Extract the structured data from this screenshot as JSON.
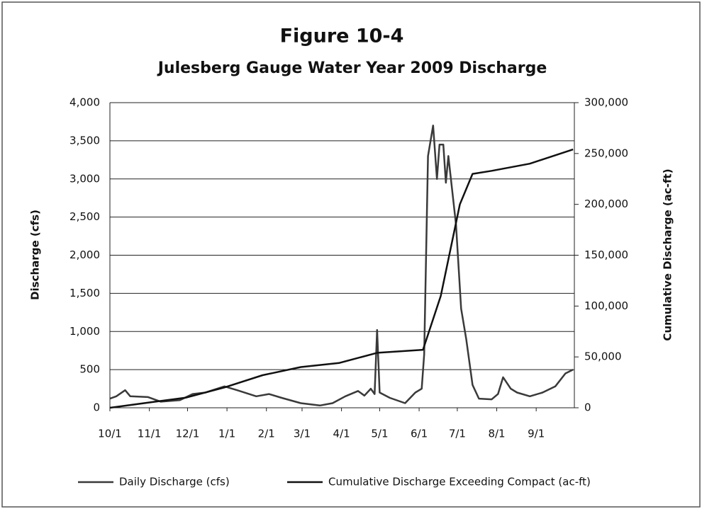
{
  "chart_data": {
    "type": "line",
    "title": "Figure 10-4",
    "subtitle": "Julesberg Gauge Water Year 2009 Discharge",
    "ylabel": "Discharge (cfs)",
    "y2label": "Cumulative Discharge (ac-ft)",
    "xlim": [
      0,
      365
    ],
    "xticks": [
      {
        "value": 0,
        "label": "10/1"
      },
      {
        "value": 31,
        "label": "11/1"
      },
      {
        "value": 61,
        "label": "12/1"
      },
      {
        "value": 92,
        "label": "1/1"
      },
      {
        "value": 123,
        "label": "2/1"
      },
      {
        "value": 151,
        "label": "3/1"
      },
      {
        "value": 182,
        "label": "4/1"
      },
      {
        "value": 212,
        "label": "5/1"
      },
      {
        "value": 243,
        "label": "6/1"
      },
      {
        "value": 273,
        "label": "7/1"
      },
      {
        "value": 304,
        "label": "8/1"
      },
      {
        "value": 335,
        "label": "9/1"
      }
    ],
    "ylim": [
      0,
      4000
    ],
    "yticks": [
      0,
      500,
      {
        "value": 1000,
        "label": "1,000"
      },
      {
        "value": 1500,
        "label": "1,500"
      },
      {
        "value": 2000,
        "label": "2,000"
      },
      {
        "value": 2500,
        "label": "2,500"
      },
      {
        "value": 3000,
        "label": "3,000"
      },
      {
        "value": 3500,
        "label": "3,500"
      },
      {
        "value": 4000,
        "label": "4,000"
      }
    ],
    "y2lim": [
      0,
      300000
    ],
    "y2ticks": [
      0,
      {
        "value": 50000,
        "label": "50,000"
      },
      {
        "value": 100000,
        "label": "100,000"
      },
      {
        "value": 150000,
        "label": "150,000"
      },
      {
        "value": 200000,
        "label": "200,000"
      },
      {
        "value": 250000,
        "label": "250,000"
      },
      {
        "value": 300000,
        "label": "300,000"
      }
    ],
    "grid": true,
    "legend": "bottom",
    "series": [
      {
        "name": "Daily Discharge (cfs)",
        "color": "#3a3a3a",
        "x": [
          0,
          5,
          12,
          16,
          30,
          40,
          55,
          65,
          75,
          90,
          100,
          115,
          125,
          135,
          150,
          165,
          175,
          185,
          195,
          200,
          205,
          208,
          210,
          212,
          220,
          232,
          240,
          245,
          247,
          250,
          254,
          257,
          259,
          262,
          264,
          266,
          268,
          272,
          276,
          280,
          285,
          290,
          300,
          305,
          309,
          315,
          320,
          330,
          340,
          350,
          358,
          364
        ],
        "values": [
          120,
          150,
          230,
          150,
          140,
          80,
          100,
          180,
          200,
          280,
          230,
          150,
          180,
          130,
          60,
          30,
          60,
          150,
          220,
          160,
          250,
          180,
          1020,
          200,
          130,
          60,
          200,
          250,
          700,
          3300,
          3700,
          3000,
          3450,
          3450,
          2950,
          3300,
          3000,
          2400,
          1300,
          900,
          300,
          120,
          110,
          180,
          400,
          250,
          200,
          150,
          200,
          280,
          450,
          500
        ]
      },
      {
        "name": "Cumulative Discharge Exceeding Compact (ac-ft)",
        "color": "#111111",
        "axis": "y2",
        "x": [
          0,
          30,
          60,
          90,
          120,
          150,
          180,
          210,
          246,
          260,
          275,
          285,
          300,
          330,
          364
        ],
        "values": [
          0,
          5000,
          10000,
          20000,
          32000,
          40000,
          44000,
          54000,
          57000,
          110000,
          200000,
          230000,
          233000,
          240000,
          254000
        ]
      }
    ]
  }
}
